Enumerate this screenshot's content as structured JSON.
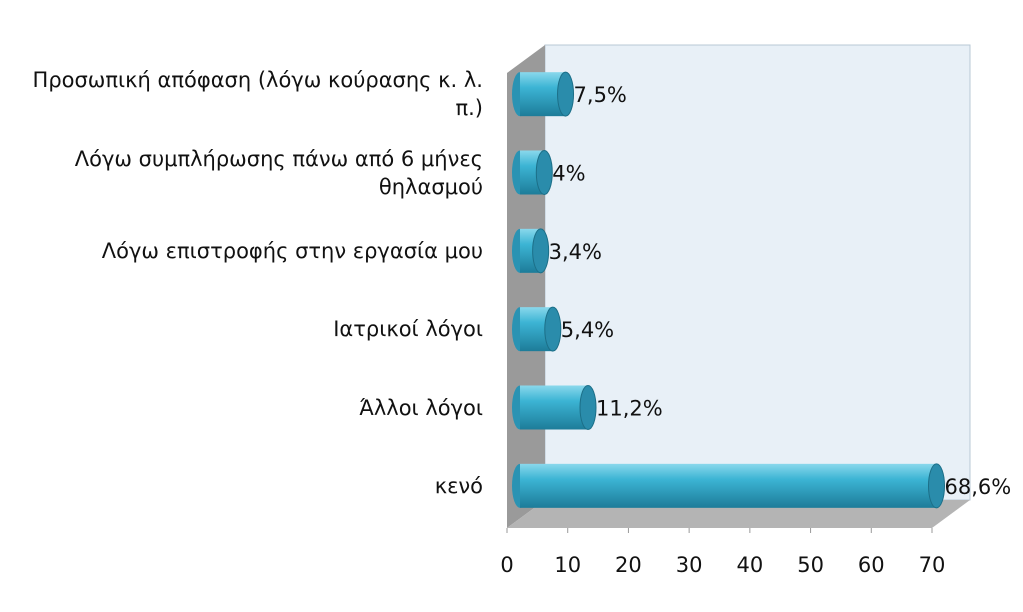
{
  "chart_data": {
    "type": "bar",
    "orientation": "horizontal",
    "categories": [
      "Προσωπική απόφαση (λόγω κούρασης κ. λ. π.)",
      "Λόγω συμπλήρωσης πάνω από 6 μήνες θηλασμού",
      "Λόγω επιστροφής στην εργασία μου",
      "Ιατρικοί λόγοι",
      "Άλλοι λόγοι",
      "κενό"
    ],
    "values": [
      7.5,
      4,
      3.4,
      5.4,
      11.2,
      68.6
    ],
    "value_labels": [
      "7,5%",
      "4%",
      "3,4%",
      "5,4%",
      "11,2%",
      "68,6%"
    ],
    "color": "#3cb4d4",
    "xlim": [
      0,
      70
    ],
    "xticks": [
      0,
      10,
      20,
      30,
      40,
      50,
      60,
      70
    ],
    "grid": false
  }
}
